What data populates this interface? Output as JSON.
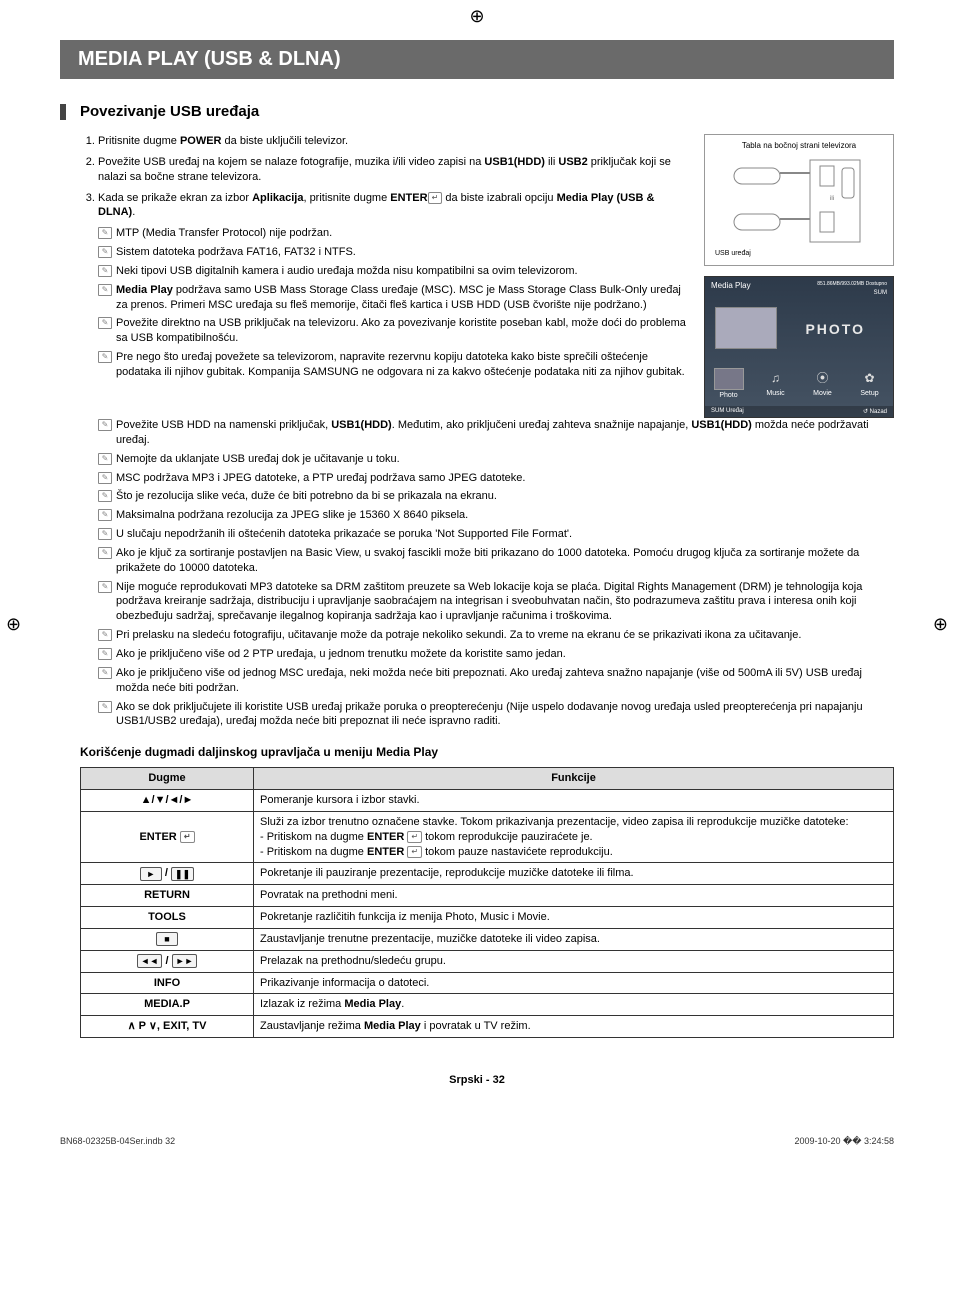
{
  "header": {
    "title": "MEDIA PLAY (USB & DLNA)"
  },
  "section": {
    "title": "Povezivanje USB uređaja"
  },
  "steps": [
    {
      "pre": "Pritisnite dugme ",
      "bold": "POWER",
      "post": " da biste uključili televizor."
    },
    {
      "pre": "Povežite USB uređaj na kojem se nalaze fotografije, muzika i/ili video zapisi na ",
      "bold": "USB1(HDD)",
      "post_mid": " ili ",
      "bold2": "USB2",
      "post": " priključak koji se nalazi sa bočne strane televizora."
    },
    {
      "pre": "Kada se prikaže ekran za izbor ",
      "bold": "Aplikacija",
      "post_mid": ", pritisnite dugme ",
      "bold2": "ENTER",
      "enter_icon": "↵",
      "post_mid2": " da biste izabrali opciju ",
      "bold3": "Media Play (USB & DLNA)",
      "post": "."
    }
  ],
  "tv_panel": {
    "caption": "Tabla na bočnoj strani televizora",
    "left_label": "USB uređaj",
    "right_label": ""
  },
  "media_play": {
    "title": "Media Play",
    "status": "851.86MB/993.02MB Dostupno",
    "sub": "SUM",
    "big_label": "PHOTO",
    "items": [
      "Photo",
      "Music",
      "Movie",
      "Setup"
    ],
    "bottom_left": "SUM   Uređaj",
    "bottom_right": "Nazad"
  },
  "notes_top": [
    "MTP (Media Transfer Protocol) nije podržan.",
    "Sistem datoteka podržava FAT16, FAT32 i NTFS.",
    "Neki tipovi USB digitalnih kamera i audio uređaja možda nisu kompatibilni sa ovim televizorom.",
    "Media Play podržava samo USB Mass Storage Class uređaje (MSC). MSC je Mass Storage Class Bulk-Only uređaj za prenos. Primeri MSC uređaja su fleš memorije, čitači fleš kartica i USB HDD (USB čvorište nije podržano.)",
    "Povežite direktno na USB priključak na televizoru. Ako za povezivanje koristite poseban kabl, može doći do problema sa USB kompatibilnošću.",
    "Pre nego što uređaj povežete sa televizorom, napravite rezervnu kopiju datoteka kako biste sprečili oštećenje podataka ili njihov gubitak. Kompanija SAMSUNG ne odgovara ni za kakvo oštećenje podataka niti za njihov gubitak."
  ],
  "notes_bottom": [
    "Povežite USB HDD na namenski priključak, USB1(HDD). Međutim, ako priključeni uređaj zahteva snažnije napajanje, USB1(HDD) možda neće podržavati uređaj.",
    "Nemojte da uklanjate USB uređaj dok je učitavanje u toku.",
    "MSC podržava MP3 i JPEG datoteke, a PTP uređaj podržava samo JPEG datoteke.",
    "Što je rezolucija slike veća, duže će biti potrebno da bi se prikazala na ekranu.",
    "Maksimalna podržana rezolucija za JPEG slike je 15360 X 8640 piksela.",
    "U slučaju nepodržanih ili oštećenih datoteka prikazaće se poruka 'Not Supported File Format'.",
    "Ako je ključ za sortiranje postavljen na Basic View, u svakoj fascikli može biti prikazano do 1000 datoteka. Pomoću drugog ključa za sortiranje možete da prikažete do 10000 datoteka.",
    "Nije moguće reprodukovati MP3 datoteke sa DRM zaštitom preuzete sa Web lokacije koja se plaća. Digital Rights Management (DRM) je tehnologija koja podržava kreiranje sadržaja, distribuciju i upravljanje saobraćajem na integrisan i sveobuhvatan način, što podrazumeva zaštitu prava i interesa onih koji obezbeđuju sadržaj, sprečavanje ilegalnog kopiranja sadržaja kao i upravljanje računima i troškovima.",
    "Pri prelasku na sledeću fotografiju, učitavanje može da potraje nekoliko sekundi. Za to vreme na ekranu će se prikazivati ikona za učitavanje.",
    "Ako je priključeno više od 2 PTP uređaja, u jednom trenutku možete da koristite samo jedan.",
    "Ako je priključeno više od jednog MSC uređaja, neki možda neće biti prepoznati. Ako uređaj zahteva snažno napajanje (više od 500mA ili 5V) USB uređaj možda neće biti podržan.",
    "Ako se dok priključujete ili koristite USB uređaj prikaže poruka o preopterećenju (Nije uspelo dodavanje novog uređaja usled preopterećenja pri napajanju USB1/USB2 uređaja), uređaj možda neće biti prepoznat ili neće ispravno raditi."
  ],
  "subsection": "Korišćenje dugmadi daljinskog upravljača u meniju Media Play",
  "table": {
    "head": [
      "Dugme",
      "Funkcije"
    ],
    "rows": [
      {
        "btn": "▲/▼/◄/►",
        "desc": "Pomeranje kursora i izbor stavki."
      },
      {
        "btn": "ENTER ↵",
        "desc_lines": [
          "Služi za izbor trenutno označene stavke. Tokom prikazivanja prezentacije, video zapisa ili reprodukcije muzičke datoteke:",
          "- Pritiskom na dugme ENTER ↵ tokom reprodukcije pauziraćete je.",
          "- Pritiskom na dugme ENTER ↵ tokom pauze nastavićete reprodukciju."
        ]
      },
      {
        "btn": "► / ❚❚",
        "desc": "Pokretanje ili pauziranje prezentacije, reprodukcije muzičke datoteke ili filma."
      },
      {
        "btn": "RETURN",
        "desc": "Povratak na prethodni meni."
      },
      {
        "btn": "TOOLS",
        "desc": "Pokretanje različitih funkcija iz menija Photo, Music i Movie."
      },
      {
        "btn": "■",
        "desc": "Zaustavljanje trenutne prezentacije, muzičke datoteke ili video zapisa."
      },
      {
        "btn": "◄◄ / ►►",
        "desc": "Prelazak na prethodnu/sledeću grupu."
      },
      {
        "btn": "INFO",
        "desc": "Prikazivanje informacija o datoteci."
      },
      {
        "btn": "MEDIA.P",
        "desc": "Izlazak iz režima Media Play."
      },
      {
        "btn": "∧ P ∨, EXIT, TV",
        "desc": "Zaustavljanje režima Media Play i povratak u TV režim."
      }
    ]
  },
  "footer": "Srpski - 32",
  "print": {
    "left": "BN68-02325B-04Ser.indb   32",
    "right": "2009-10-20   �� 3:24:58"
  }
}
